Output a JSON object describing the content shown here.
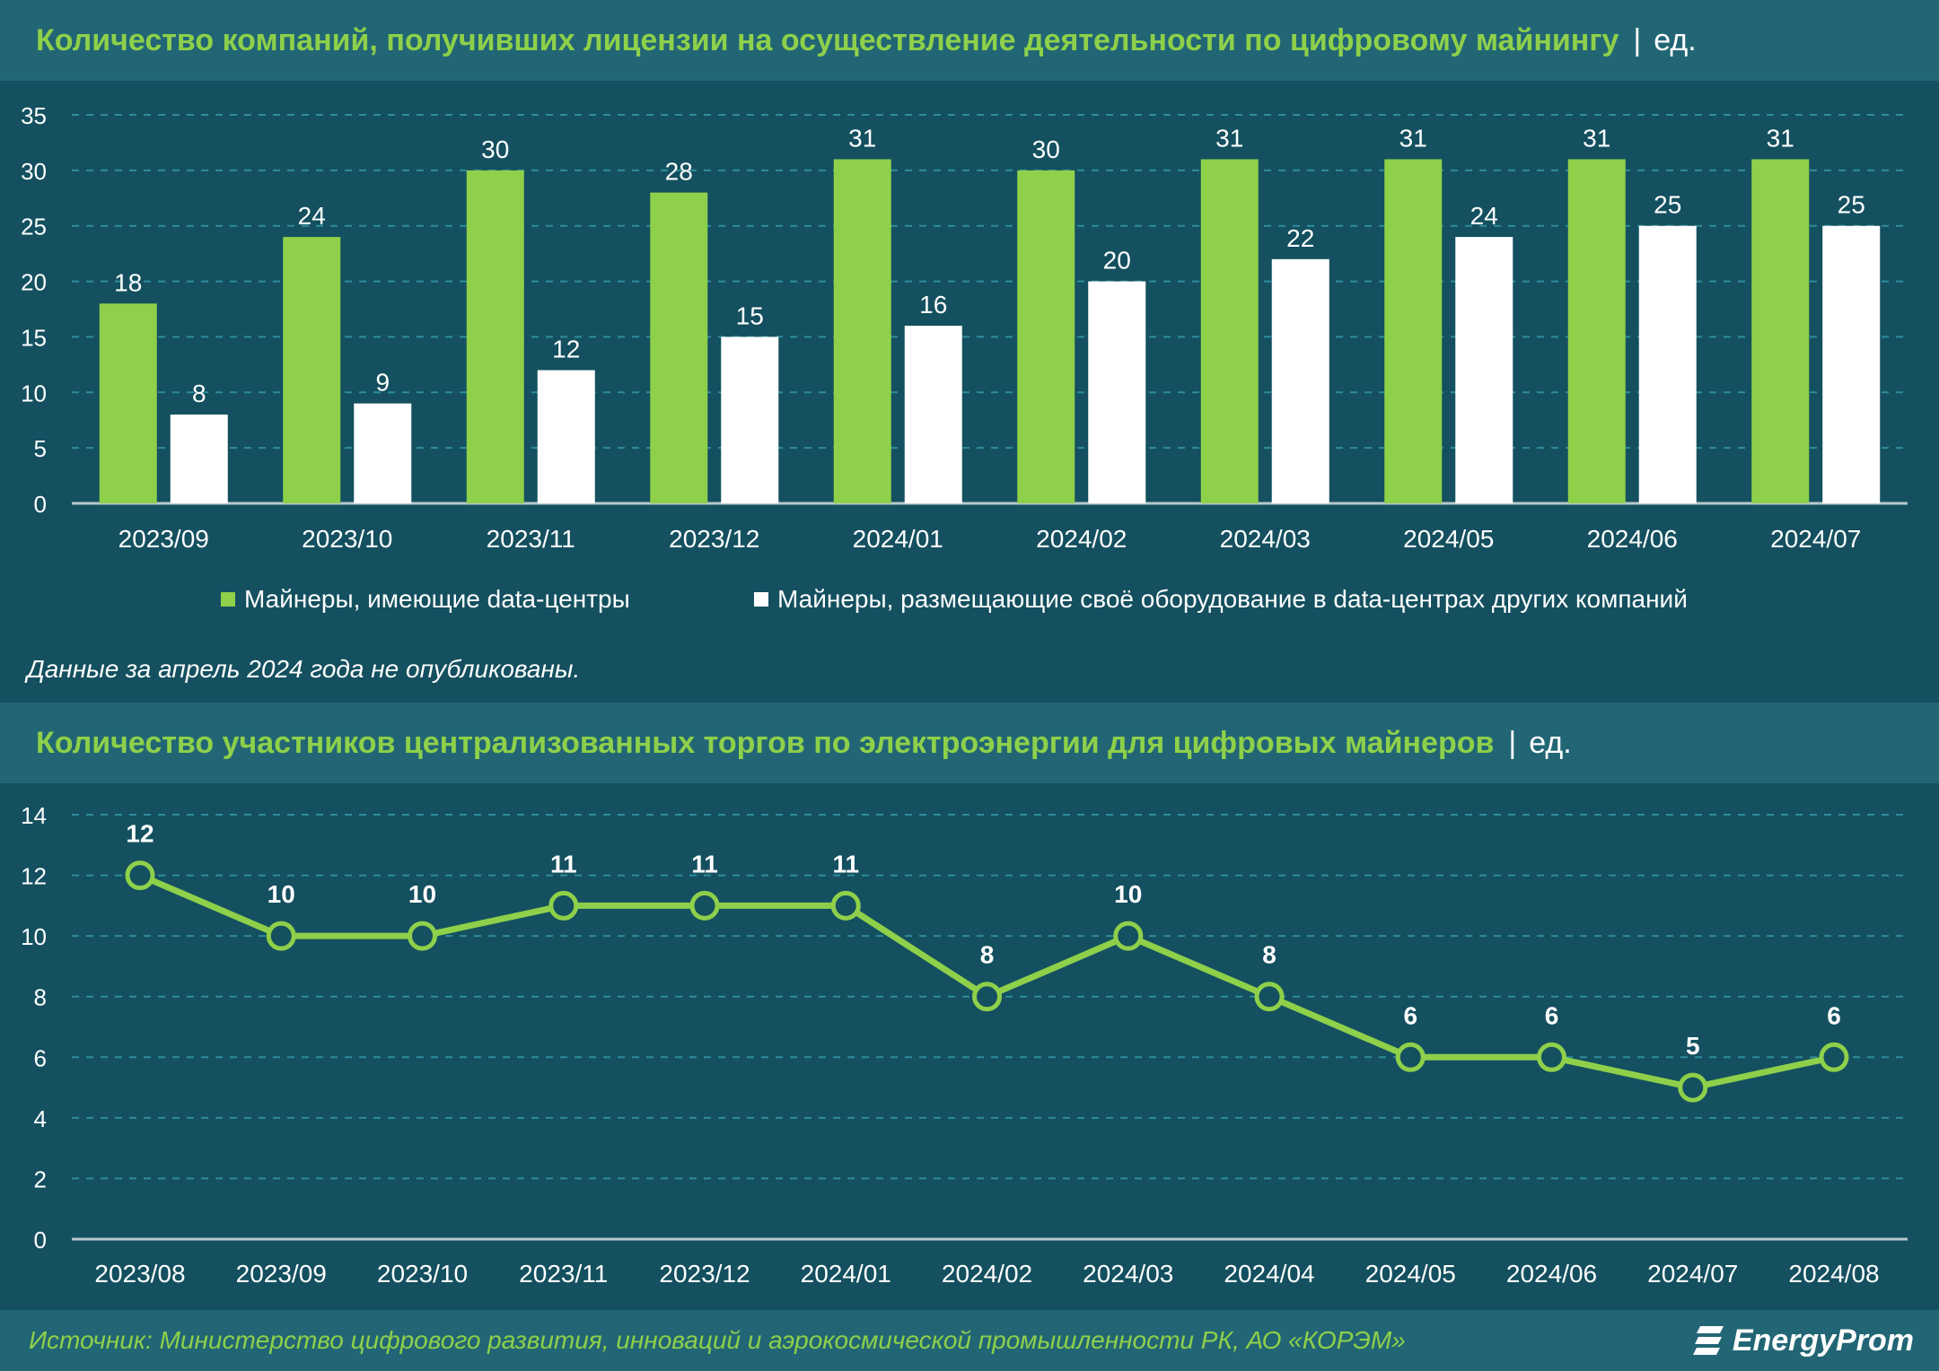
{
  "chart1": {
    "title": "Количество компаний, получивших лицензии на осуществление деятельности по цифровому майнингу",
    "separator": "|",
    "unit": "ед.",
    "note": "Данные за апрель 2024 года не опубликованы."
  },
  "chart2": {
    "title": "Количество участников централизованных торгов по электроэнергии для цифровых майнеров",
    "separator": "|",
    "unit": "ед."
  },
  "footer": {
    "source": "Источник: Министерство цифрового развития, инноваций и аэрокосмической промышленности РК, АО «КОРЭМ»",
    "logo_text": "EnergyProm"
  },
  "colors": {
    "background": "#14505f",
    "band": "#226675",
    "green": "#8ed04a",
    "white": "#ffffff",
    "grid": "#2f8c9c"
  },
  "icons": {
    "logo": "energyprom-logo-icon"
  },
  "chart_data": [
    {
      "type": "bar",
      "categories": [
        "2023/09",
        "2023/10",
        "2023/11",
        "2023/12",
        "2024/01",
        "2024/02",
        "2024/03",
        "2024/05",
        "2024/06",
        "2024/07"
      ],
      "series": [
        {
          "name": "Майнеры, имеющие data-центры",
          "color": "#8ed04a",
          "values": [
            18,
            24,
            30,
            28,
            31,
            30,
            31,
            31,
            31,
            31
          ]
        },
        {
          "name": "Майнеры, размещающие своё оборудование в data-центрах других компаний",
          "color": "#ffffff",
          "values": [
            8,
            9,
            12,
            15,
            16,
            20,
            22,
            24,
            25,
            25
          ]
        }
      ],
      "ylim": [
        0,
        35
      ],
      "yticks": [
        0,
        5,
        10,
        15,
        20,
        25,
        30,
        35
      ],
      "grid": true,
      "legend": "bottom-center",
      "data_labels": true
    },
    {
      "type": "line",
      "x": [
        "2023/08",
        "2023/09",
        "2023/10",
        "2023/11",
        "2023/12",
        "2024/01",
        "2024/02",
        "2024/03",
        "2024/04",
        "2024/05",
        "2024/06",
        "2024/07",
        "2024/08"
      ],
      "series": [
        {
          "color": "#8ed04a",
          "values": [
            12,
            10,
            10,
            11,
            11,
            11,
            8,
            10,
            8,
            6,
            6,
            5,
            6
          ]
        }
      ],
      "ylim": [
        0,
        14
      ],
      "yticks": [
        0,
        2,
        4,
        6,
        8,
        10,
        12,
        14
      ],
      "grid": true,
      "data_labels": true
    }
  ]
}
